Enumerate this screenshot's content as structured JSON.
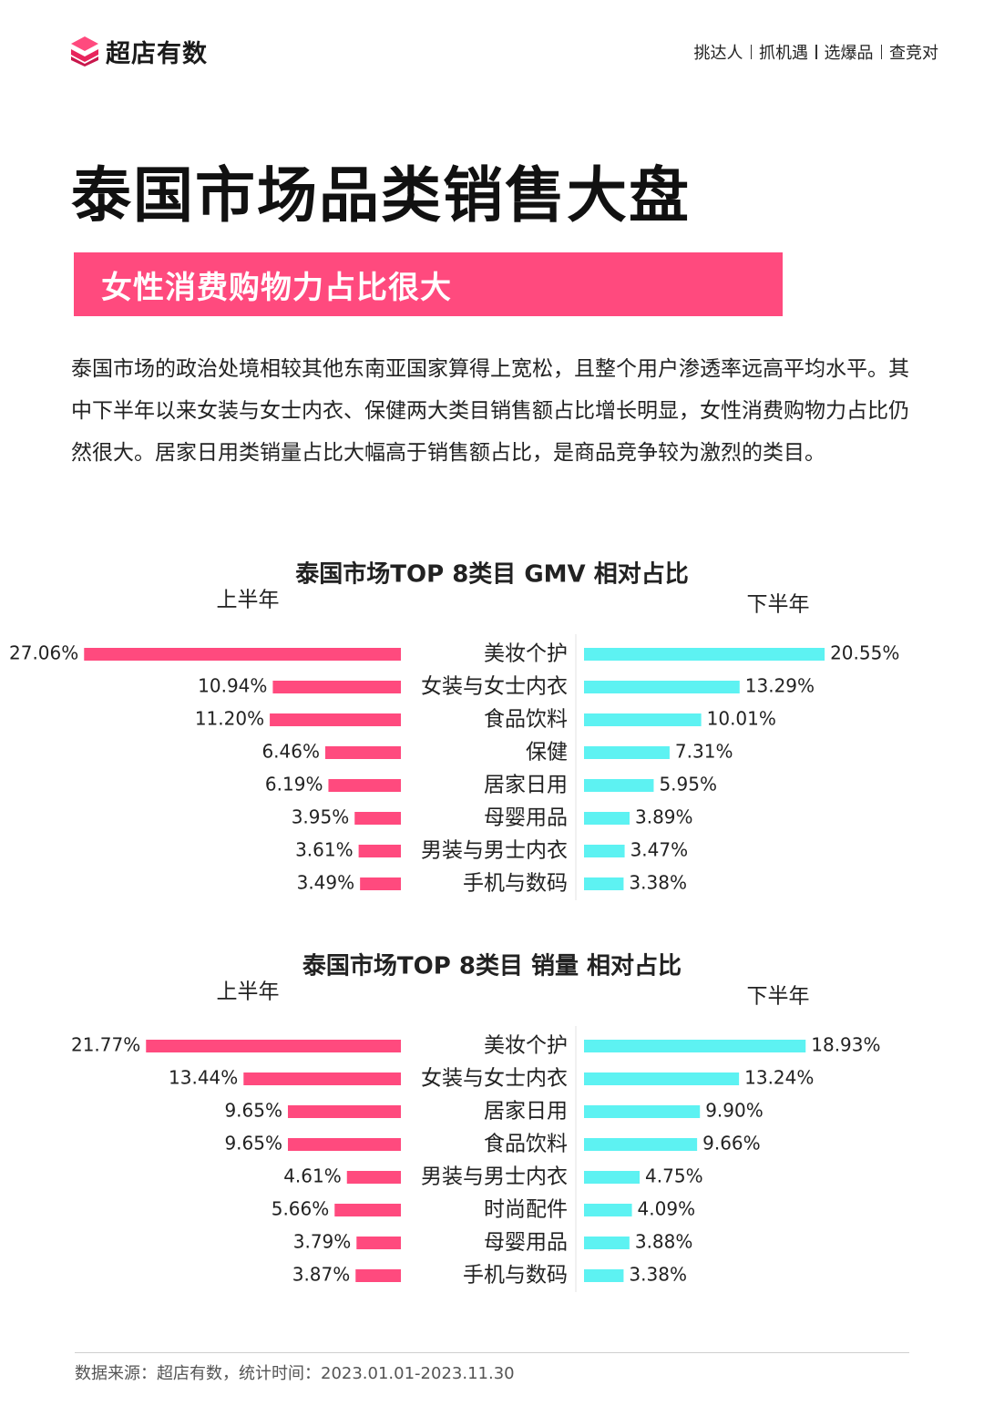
{
  "header": {
    "brand_name": "超店有数",
    "nav": [
      "挑达人",
      "抓机遇",
      "选爆品",
      "查竞对"
    ]
  },
  "title": "泰国市场品类销售大盘",
  "subtitle": "女性消费购物力占比很大",
  "paragraph": "泰国市场的政治处境相较其他东南亚国家算得上宽松，且整个用户渗透率远高平均水平。其中下半年以来女装与女士内衣、保健两大类目销售额占比增长明显，女性消费购物力占比仍然很大。居家日用类销量占比大幅高于销售额占比，是商品竞争较为激烈的类目。",
  "colors": {
    "accent": "#ff4a7e",
    "cyan": "#5df2f2",
    "text": "#222222"
  },
  "chart_data": [
    {
      "type": "bar",
      "title": "泰国市场TOP 8类目 GMV 相对占比",
      "categories": [
        "美妆个护",
        "女装与女士内衣",
        "食品饮料",
        "保健",
        "居家日用",
        "母婴用品",
        "男装与男士内衣",
        "手机与数码"
      ],
      "series": [
        {
          "name": "上半年",
          "values": [
            27.06,
            10.94,
            11.2,
            6.46,
            6.19,
            3.95,
            3.61,
            3.49
          ],
          "labels": [
            "27.06%",
            "10.94%",
            "11.20%",
            "6.46%",
            "6.19%",
            "3.95%",
            "3.61%",
            "3.49%"
          ]
        },
        {
          "name": "下半年",
          "values": [
            20.55,
            13.29,
            10.01,
            7.31,
            5.95,
            3.89,
            3.47,
            3.38
          ],
          "labels": [
            "20.55%",
            "13.29%",
            "10.01%",
            "7.31%",
            "5.95%",
            "3.89%",
            "3.47%",
            "3.38%"
          ]
        }
      ],
      "unit": "%"
    },
    {
      "type": "bar",
      "title": "泰国市场TOP 8类目 销量 相对占比",
      "categories": [
        "美妆个护",
        "女装与女士内衣",
        "居家日用",
        "食品饮料",
        "男装与男士内衣",
        "时尚配件",
        "母婴用品",
        "手机与数码"
      ],
      "series": [
        {
          "name": "上半年",
          "values": [
            21.77,
            13.44,
            9.65,
            9.65,
            4.61,
            5.66,
            3.79,
            3.87
          ],
          "labels": [
            "21.77%",
            "13.44%",
            "9.65%",
            "9.65%",
            "4.61%",
            "5.66%",
            "3.79%",
            "3.87%"
          ]
        },
        {
          "name": "下半年",
          "values": [
            18.93,
            13.24,
            9.9,
            9.66,
            4.75,
            4.09,
            3.88,
            3.38
          ],
          "labels": [
            "18.93%",
            "13.24%",
            "9.90%",
            "9.66%",
            "4.75%",
            "4.09%",
            "3.88%",
            "3.38%"
          ]
        }
      ],
      "unit": "%"
    }
  ],
  "footer": "数据来源：超店有数，统计时间：2023.01.01-2023.11.30"
}
